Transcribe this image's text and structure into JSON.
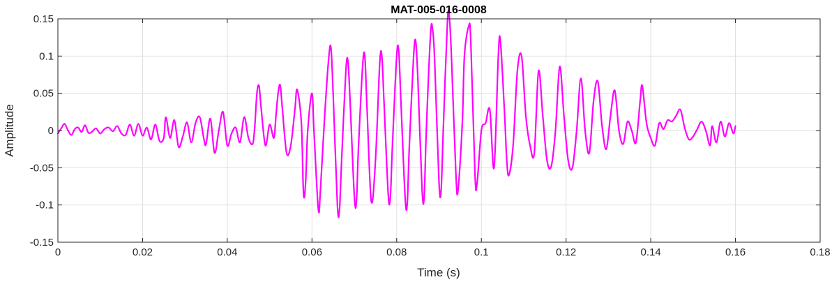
{
  "chart_data": {
    "type": "line",
    "title": "MAT-005-016-0008",
    "xlabel": "Time (s)",
    "ylabel": "Amplitude",
    "xlim": [
      0,
      0.18
    ],
    "ylim": [
      -0.15,
      0.15
    ],
    "grid": true,
    "x_ticks": [
      0,
      0.02,
      0.04,
      0.06,
      0.08,
      0.1,
      0.12,
      0.14,
      0.16,
      0.18
    ],
    "x_tick_labels": [
      "0",
      "0.02",
      "0.04",
      "0.06",
      "0.08",
      "0.1",
      "0.12",
      "0.14",
      "0.16",
      "0.18"
    ],
    "y_ticks": [
      -0.15,
      -0.1,
      -0.05,
      0,
      0.05,
      0.1,
      0.15
    ],
    "y_tick_labels": [
      "-0.15",
      "-0.1",
      "-0.05",
      "0",
      "0.05",
      "0.1",
      "0.15"
    ],
    "series": [
      {
        "color": "#ff00ff",
        "points": [
          [
            0.0,
            -0.004
          ],
          [
            0.0008,
            0.003
          ],
          [
            0.0016,
            0.009
          ],
          [
            0.0024,
            0.0
          ],
          [
            0.0032,
            -0.006
          ],
          [
            0.004,
            0.002
          ],
          [
            0.0048,
            0.004
          ],
          [
            0.0056,
            -0.002
          ],
          [
            0.0064,
            0.007
          ],
          [
            0.0072,
            -0.003
          ],
          [
            0.008,
            -0.002
          ],
          [
            0.009,
            0.003
          ],
          [
            0.01,
            -0.004
          ],
          [
            0.011,
            0.002
          ],
          [
            0.012,
            0.004
          ],
          [
            0.013,
            -0.001
          ],
          [
            0.014,
            0.006
          ],
          [
            0.015,
            -0.004
          ],
          [
            0.016,
            -0.006
          ],
          [
            0.017,
            0.008
          ],
          [
            0.018,
            -0.007
          ],
          [
            0.019,
            0.009
          ],
          [
            0.02,
            -0.007
          ],
          [
            0.021,
            0.004
          ],
          [
            0.022,
            -0.012
          ],
          [
            0.023,
            0.008
          ],
          [
            0.024,
            -0.014
          ],
          [
            0.025,
            -0.01
          ],
          [
            0.0255,
            0.018
          ],
          [
            0.0265,
            -0.01
          ],
          [
            0.0275,
            0.014
          ],
          [
            0.0285,
            -0.022
          ],
          [
            0.0295,
            -0.008
          ],
          [
            0.0305,
            0.011
          ],
          [
            0.0315,
            -0.016
          ],
          [
            0.0325,
            0.01
          ],
          [
            0.0335,
            0.018
          ],
          [
            0.0345,
            -0.012
          ],
          [
            0.035,
            -0.018
          ],
          [
            0.036,
            0.016
          ],
          [
            0.037,
            -0.03
          ],
          [
            0.038,
            0.0
          ],
          [
            0.039,
            0.025
          ],
          [
            0.04,
            -0.02
          ],
          [
            0.041,
            -0.004
          ],
          [
            0.042,
            0.004
          ],
          [
            0.043,
            -0.016
          ],
          [
            0.044,
            0.018
          ],
          [
            0.045,
            -0.01
          ],
          [
            0.046,
            -0.018
          ],
          [
            0.0465,
            0.006
          ],
          [
            0.047,
            0.05
          ],
          [
            0.0475,
            0.06
          ],
          [
            0.048,
            0.03
          ],
          [
            0.049,
            -0.02
          ],
          [
            0.05,
            0.008
          ],
          [
            0.051,
            -0.01
          ],
          [
            0.0515,
            0.02
          ],
          [
            0.052,
            0.05
          ],
          [
            0.0525,
            0.061
          ],
          [
            0.053,
            0.03
          ],
          [
            0.054,
            -0.03
          ],
          [
            0.055,
            -0.02
          ],
          [
            0.056,
            0.03
          ],
          [
            0.0565,
            0.055
          ],
          [
            0.0575,
            0.01
          ],
          [
            0.058,
            -0.085
          ],
          [
            0.0585,
            -0.07
          ],
          [
            0.059,
            0.0
          ],
          [
            0.06,
            0.05
          ],
          [
            0.0605,
            -0.004
          ],
          [
            0.0615,
            -0.106
          ],
          [
            0.062,
            -0.08
          ],
          [
            0.063,
            0.02
          ],
          [
            0.064,
            0.1
          ],
          [
            0.0645,
            0.11
          ],
          [
            0.065,
            0.05
          ],
          [
            0.066,
            -0.1
          ],
          [
            0.0665,
            -0.106
          ],
          [
            0.067,
            -0.04
          ],
          [
            0.068,
            0.08
          ],
          [
            0.0685,
            0.093
          ],
          [
            0.069,
            0.04
          ],
          [
            0.07,
            -0.088
          ],
          [
            0.0705,
            -0.095
          ],
          [
            0.071,
            -0.02
          ],
          [
            0.072,
            0.09
          ],
          [
            0.0725,
            0.098
          ],
          [
            0.073,
            0.03
          ],
          [
            0.074,
            -0.095
          ],
          [
            0.075,
            -0.04
          ],
          [
            0.076,
            0.09
          ],
          [
            0.0765,
            0.1
          ],
          [
            0.077,
            0.04
          ],
          [
            0.078,
            -0.085
          ],
          [
            0.0785,
            -0.09
          ],
          [
            0.079,
            -0.02
          ],
          [
            0.08,
            0.1
          ],
          [
            0.0805,
            0.106
          ],
          [
            0.081,
            0.04
          ],
          [
            0.082,
            -0.09
          ],
          [
            0.0825,
            -0.098
          ],
          [
            0.083,
            -0.02
          ],
          [
            0.084,
            0.1
          ],
          [
            0.0845,
            0.12
          ],
          [
            0.085,
            0.07
          ],
          [
            0.086,
            -0.08
          ],
          [
            0.0865,
            -0.088
          ],
          [
            0.087,
            0.0
          ],
          [
            0.088,
            0.13
          ],
          [
            0.0885,
            0.135
          ],
          [
            0.089,
            0.09
          ],
          [
            0.09,
            -0.07
          ],
          [
            0.0905,
            -0.08
          ],
          [
            0.091,
            0.0
          ],
          [
            0.092,
            0.148
          ],
          [
            0.0925,
            0.148
          ],
          [
            0.093,
            0.09
          ],
          [
            0.094,
            -0.06
          ],
          [
            0.0945,
            -0.08
          ],
          [
            0.0955,
            0.01
          ],
          [
            0.096,
            0.1
          ],
          [
            0.097,
            0.14
          ],
          [
            0.0975,
            0.12
          ],
          [
            0.0985,
            -0.06
          ],
          [
            0.099,
            -0.07
          ],
          [
            0.1,
            0.0
          ],
          [
            0.101,
            0.01
          ],
          [
            0.102,
            0.028
          ],
          [
            0.103,
            -0.05
          ],
          [
            0.104,
            0.1
          ],
          [
            0.1045,
            0.12
          ],
          [
            0.1055,
            0.02
          ],
          [
            0.106,
            -0.04
          ],
          [
            0.1065,
            -0.06
          ],
          [
            0.1075,
            -0.02
          ],
          [
            0.1085,
            0.08
          ],
          [
            0.1095,
            0.1
          ],
          [
            0.1105,
            0.02
          ],
          [
            0.1115,
            -0.02
          ],
          [
            0.1125,
            -0.03
          ],
          [
            0.1135,
            0.08
          ],
          [
            0.1145,
            0.02
          ],
          [
            0.1155,
            -0.04
          ],
          [
            0.1165,
            -0.048
          ],
          [
            0.1175,
            0.0
          ],
          [
            0.1185,
            0.086
          ],
          [
            0.1195,
            0.02
          ],
          [
            0.1205,
            -0.04
          ],
          [
            0.1215,
            -0.05
          ],
          [
            0.1225,
            0.0
          ],
          [
            0.1235,
            0.07
          ],
          [
            0.1245,
            0.0
          ],
          [
            0.1255,
            -0.03
          ],
          [
            0.1265,
            0.04
          ],
          [
            0.1275,
            0.066
          ],
          [
            0.1285,
            0.006
          ],
          [
            0.1295,
            -0.025
          ],
          [
            0.1305,
            0.02
          ],
          [
            0.1315,
            0.054
          ],
          [
            0.1325,
            0.0
          ],
          [
            0.1335,
            -0.018
          ],
          [
            0.1345,
            0.012
          ],
          [
            0.1355,
            0.0
          ],
          [
            0.1365,
            -0.016
          ],
          [
            0.1375,
            0.04
          ],
          [
            0.138,
            0.06
          ],
          [
            0.139,
            0.01
          ],
          [
            0.14,
            -0.01
          ],
          [
            0.141,
            -0.02
          ],
          [
            0.142,
            0.01
          ],
          [
            0.143,
            0.002
          ],
          [
            0.144,
            0.014
          ],
          [
            0.145,
            0.012
          ],
          [
            0.146,
            0.02
          ],
          [
            0.147,
            0.028
          ],
          [
            0.148,
            0.004
          ],
          [
            0.149,
            -0.012
          ],
          [
            0.15,
            -0.008
          ],
          [
            0.151,
            0.002
          ],
          [
            0.152,
            0.012
          ],
          [
            0.153,
            0.0
          ],
          [
            0.154,
            -0.02
          ],
          [
            0.1545,
            0.006
          ],
          [
            0.1555,
            -0.016
          ],
          [
            0.1565,
            0.012
          ],
          [
            0.1575,
            -0.008
          ],
          [
            0.1585,
            0.01
          ],
          [
            0.1595,
            -0.004
          ],
          [
            0.16,
            0.006
          ]
        ]
      }
    ]
  }
}
